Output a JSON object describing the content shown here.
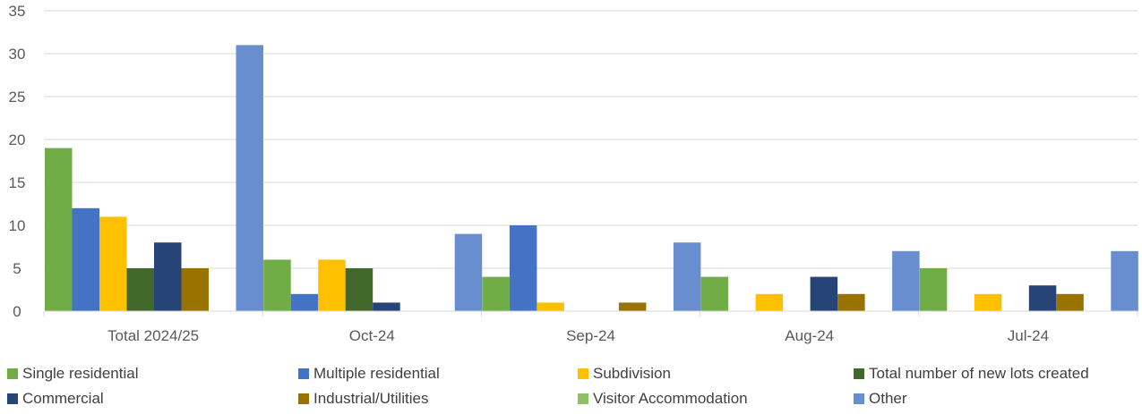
{
  "chart_data": {
    "type": "bar",
    "title": "",
    "xlabel": "",
    "ylabel": "",
    "ylim": [
      0,
      35
    ],
    "yticks": [
      0,
      5,
      10,
      15,
      20,
      25,
      30,
      35
    ],
    "grid": true,
    "legend_position": "bottom",
    "categories": [
      "Total 2024/25",
      "Oct-24",
      "Sep-24",
      "Aug-24",
      "Jul-24"
    ],
    "series": [
      {
        "name": "Single residential",
        "color": "#70AD47",
        "values": [
          19,
          6,
          4,
          4,
          5
        ]
      },
      {
        "name": "Multiple residential",
        "color": "#4472C4",
        "values": [
          12,
          2,
          10,
          0,
          0
        ]
      },
      {
        "name": "Subdivision",
        "color": "#FFC000",
        "values": [
          11,
          6,
          1,
          2,
          2
        ]
      },
      {
        "name": "Total number of new lots created",
        "color": "#43682B",
        "values": [
          5,
          5,
          0,
          0,
          0
        ]
      },
      {
        "name": "Commercial",
        "color": "#264478",
        "values": [
          8,
          1,
          0,
          4,
          3
        ]
      },
      {
        "name": "Industrial/Utilities",
        "color": "#997300",
        "values": [
          5,
          0,
          1,
          2,
          2
        ]
      },
      {
        "name": "Visitor Accommodation",
        "color": "#8CC168",
        "values": [
          0,
          0,
          0,
          0,
          0
        ]
      },
      {
        "name": "Other",
        "color": "#698ED0",
        "values": [
          31,
          9,
          8,
          7,
          7
        ]
      }
    ]
  }
}
